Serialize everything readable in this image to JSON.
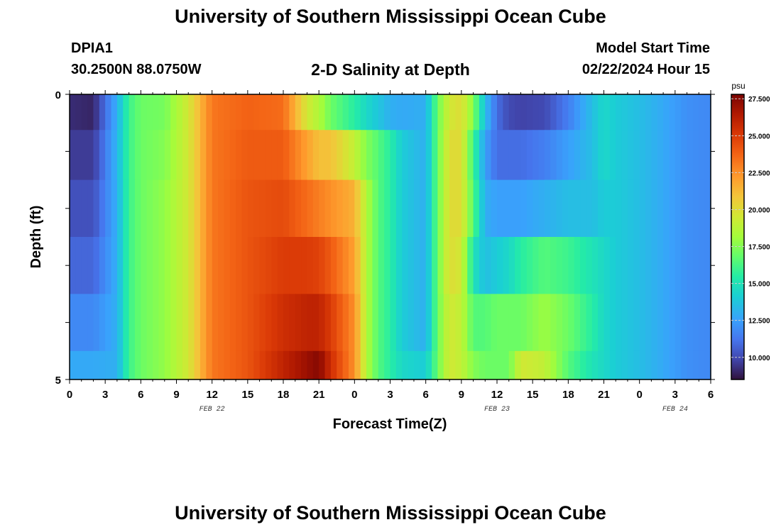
{
  "header": {
    "title": "University of Southern Mississippi Ocean Cube",
    "station_id": "DPIA1",
    "station_coords": "30.2500N  88.0750W",
    "plot_title": "2-D Salinity at Depth",
    "model_start_label": "Model Start Time",
    "model_start_value": "02/22/2024 Hour 15"
  },
  "footer": {
    "title": "University of Southern Mississippi Ocean Cube"
  },
  "chart_data": {
    "type": "heatmap",
    "title": "2-D Salinity at Depth",
    "xlabel": "Forecast Time(Z)",
    "ylabel": "Depth (ft)",
    "x_hours_range": [
      0,
      54
    ],
    "x_tick_labels": [
      "0",
      "3",
      "6",
      "9",
      "12",
      "15",
      "18",
      "21",
      "0",
      "3",
      "6",
      "9",
      "12",
      "15",
      "18",
      "21",
      "0",
      "3",
      "6"
    ],
    "date_labels": [
      {
        "text": "FEB 22",
        "hour": 12
      },
      {
        "text": "FEB 23",
        "hour": 36
      },
      {
        "text": "FEB 24",
        "hour": 51
      }
    ],
    "y_range": [
      0,
      5
    ],
    "y_tick_labels": [
      "0",
      "5"
    ],
    "depth_layers_ft": [
      0.25,
      1.0,
      2.0,
      3.0,
      4.0,
      5.0
    ],
    "colorbar": {
      "unit": "psu",
      "range": [
        8.5,
        27.8
      ],
      "ticks": [
        "27.500",
        "25.000",
        "22.500",
        "20.000",
        "17.500",
        "15.000",
        "12.500",
        "10.000"
      ],
      "tick_values": [
        27.5,
        25.0,
        22.5,
        20.0,
        17.5,
        15.0,
        12.5,
        10.0
      ]
    },
    "hours": [
      0,
      2,
      4,
      5,
      6,
      8,
      10,
      12,
      15,
      18,
      20,
      21,
      22,
      24,
      25,
      26,
      27,
      28,
      30,
      31,
      32,
      33,
      34,
      35,
      36,
      37,
      38,
      40,
      42,
      44,
      45,
      46,
      48,
      50,
      52,
      54
    ],
    "salinity_psu": [
      [
        9.2,
        9.0,
        13.0,
        16.0,
        17.0,
        17.2,
        19.5,
        23.2,
        23.8,
        23.5,
        19.5,
        18.5,
        17.0,
        15.5,
        14.5,
        13.8,
        13.0,
        12.8,
        13.0,
        17.0,
        19.5,
        20.0,
        17.5,
        13.5,
        11.0,
        10.0,
        9.8,
        10.0,
        11.5,
        13.5,
        14.5,
        14.0,
        13.5,
        12.8,
        12.0,
        11.8
      ],
      [
        9.6,
        9.6,
        13.2,
        16.0,
        17.0,
        17.5,
        19.5,
        23.2,
        24.0,
        24.0,
        22.0,
        21.0,
        21.0,
        19.0,
        17.5,
        16.5,
        15.5,
        14.0,
        13.0,
        17.0,
        20.0,
        20.0,
        16.0,
        12.5,
        11.0,
        11.0,
        11.0,
        11.5,
        12.5,
        13.5,
        14.5,
        14.0,
        13.5,
        12.8,
        12.0,
        11.8
      ],
      [
        10.2,
        10.2,
        13.0,
        16.0,
        17.0,
        17.8,
        19.5,
        23.2,
        24.2,
        24.5,
        23.5,
        23.0,
        22.5,
        21.5,
        18.5,
        16.5,
        15.5,
        14.0,
        13.0,
        17.0,
        20.0,
        20.0,
        16.5,
        13.0,
        12.5,
        12.5,
        12.5,
        13.0,
        13.5,
        13.5,
        14.0,
        14.0,
        13.5,
        12.8,
        12.0,
        11.8
      ],
      [
        10.8,
        10.8,
        13.0,
        16.0,
        17.0,
        17.8,
        19.5,
        23.2,
        24.2,
        25.0,
        25.0,
        24.8,
        24.0,
        22.0,
        18.5,
        16.5,
        15.5,
        14.0,
        13.0,
        17.0,
        20.0,
        19.5,
        15.0,
        13.5,
        14.0,
        14.5,
        15.5,
        16.5,
        16.0,
        15.0,
        14.5,
        14.0,
        13.5,
        12.8,
        12.0,
        11.8
      ],
      [
        11.8,
        11.8,
        13.0,
        16.0,
        17.0,
        17.8,
        19.5,
        23.2,
        24.2,
        25.5,
        26.0,
        26.0,
        25.0,
        22.5,
        18.5,
        16.5,
        15.5,
        14.0,
        13.0,
        17.0,
        19.5,
        19.0,
        16.5,
        16.5,
        17.0,
        17.0,
        17.0,
        18.0,
        17.0,
        15.5,
        14.5,
        14.0,
        13.5,
        12.8,
        12.0,
        11.8
      ],
      [
        12.8,
        12.8,
        13.0,
        16.0,
        17.0,
        17.8,
        19.5,
        23.2,
        24.2,
        26.0,
        27.0,
        27.5,
        25.5,
        22.5,
        18.5,
        16.5,
        15.5,
        14.5,
        14.0,
        17.0,
        19.5,
        19.0,
        17.5,
        17.0,
        17.0,
        17.0,
        19.5,
        19.0,
        16.5,
        15.0,
        14.5,
        14.0,
        13.5,
        12.8,
        12.0,
        11.8
      ]
    ]
  }
}
